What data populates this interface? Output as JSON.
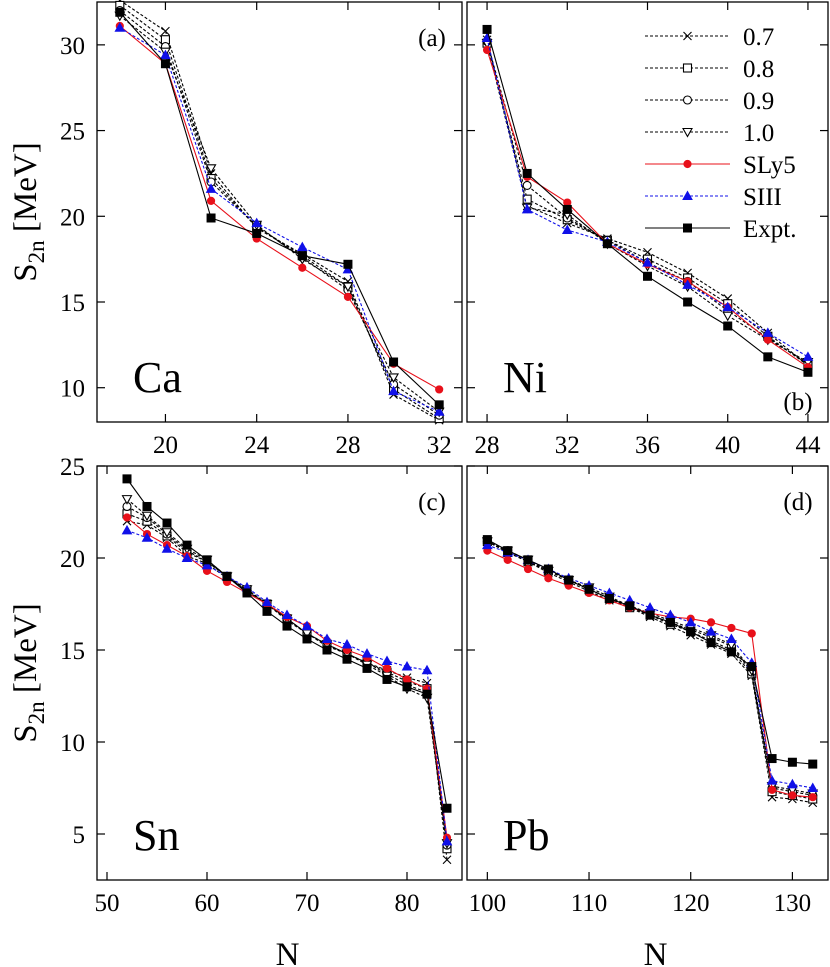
{
  "legend": [
    {
      "label": "0.7",
      "marker": "x",
      "color": "#000000",
      "dash": true
    },
    {
      "label": "0.8",
      "marker": "square-open",
      "color": "#000000",
      "dash": true
    },
    {
      "label": "0.9",
      "marker": "circle-open",
      "color": "#000000",
      "dash": true
    },
    {
      "label": "1.0",
      "marker": "triangle-down-open",
      "color": "#000000",
      "dash": true
    },
    {
      "label": "SLy5",
      "marker": "circle-filled",
      "color": "#e8101a",
      "dash": false
    },
    {
      "label": "SIII",
      "marker": "triangle-up-filled",
      "color": "#1010e8",
      "dash": true
    },
    {
      "label": "Expt.",
      "marker": "square-filled",
      "color": "#000000",
      "dash": false
    }
  ],
  "chart_data": [
    {
      "type": "line",
      "panel_label": "(a)",
      "element": "Ca",
      "xlabel": "",
      "ylabel": "S_2n [MeV]",
      "xlim": [
        17,
        33
      ],
      "ylim": [
        8,
        32.5
      ],
      "xticks": [
        20,
        24,
        28,
        32
      ],
      "yticks": [
        10,
        15,
        20,
        25,
        30
      ],
      "x": [
        18,
        20,
        22,
        24,
        26,
        28,
        30,
        32
      ],
      "series": [
        {
          "name": "0.7",
          "values": [
            32.6,
            30.8,
            22.5,
            19.3,
            17.8,
            16.2,
            9.6,
            8.1
          ]
        },
        {
          "name": "0.8",
          "values": [
            32.3,
            30.3,
            22.2,
            19.4,
            17.7,
            15.9,
            9.9,
            8.2
          ]
        },
        {
          "name": "0.9",
          "values": [
            32.0,
            29.9,
            22.0,
            19.4,
            17.6,
            15.7,
            10.2,
            8.4
          ]
        },
        {
          "name": "1.0",
          "values": [
            31.7,
            29.6,
            22.8,
            19.5,
            17.5,
            15.9,
            10.6,
            8.6
          ]
        },
        {
          "name": "SLy5",
          "values": [
            31.1,
            28.9,
            20.9,
            18.7,
            17.0,
            15.3,
            11.4,
            9.9
          ]
        },
        {
          "name": "SIII",
          "values": [
            31.0,
            29.4,
            21.6,
            19.6,
            18.2,
            16.9,
            9.8,
            8.6
          ]
        },
        {
          "name": "Expt.",
          "values": [
            31.9,
            28.9,
            19.9,
            19.0,
            17.7,
            17.2,
            11.5,
            9.0
          ]
        }
      ]
    },
    {
      "type": "line",
      "panel_label": "(b)",
      "element": "Ni",
      "xlabel": "",
      "ylabel": "",
      "xlim": [
        27,
        45
      ],
      "ylim": [
        8,
        32.5
      ],
      "xticks": [
        28,
        32,
        36,
        40,
        44
      ],
      "yticks": [
        10,
        15,
        20,
        25,
        30
      ],
      "x": [
        28,
        30,
        32,
        34,
        36,
        38,
        40,
        42,
        44
      ],
      "series": [
        {
          "name": "0.7",
          "values": [
            30.3,
            20.6,
            19.6,
            18.7,
            17.9,
            16.7,
            15.2,
            13.2,
            11.3
          ]
        },
        {
          "name": "0.8",
          "values": [
            30.1,
            21.0,
            19.8,
            18.6,
            17.5,
            16.4,
            14.9,
            13.0,
            11.3
          ]
        },
        {
          "name": "0.9",
          "values": [
            30.2,
            21.8,
            19.9,
            18.6,
            17.3,
            16.2,
            14.5,
            12.9,
            11.4
          ]
        },
        {
          "name": "1.0",
          "values": [
            30.1,
            20.5,
            20.1,
            18.4,
            17.1,
            15.9,
            14.2,
            12.8,
            11.5
          ]
        },
        {
          "name": "SLy5",
          "values": [
            29.7,
            22.3,
            20.8,
            18.4,
            17.2,
            16.2,
            14.7,
            12.8,
            11.2
          ]
        },
        {
          "name": "SIII",
          "values": [
            30.4,
            20.4,
            19.2,
            18.5,
            17.3,
            16.0,
            14.7,
            13.2,
            11.8
          ]
        },
        {
          "name": "Expt.",
          "values": [
            30.9,
            22.5,
            20.4,
            18.4,
            16.5,
            15.0,
            13.6,
            11.8,
            10.9
          ]
        }
      ]
    },
    {
      "type": "line",
      "panel_label": "(c)",
      "element": "Sn",
      "xlabel": "N",
      "ylabel": "S_2n [MeV]",
      "xlim": [
        49,
        85.5
      ],
      "ylim": [
        2.5,
        25
      ],
      "xticks": [
        50,
        60,
        70,
        80
      ],
      "yticks": [
        5,
        10,
        15,
        20,
        25
      ],
      "x": [
        52,
        54,
        56,
        58,
        60,
        62,
        64,
        66,
        68,
        70,
        72,
        74,
        76,
        78,
        80,
        82,
        84
      ],
      "series": [
        {
          "name": "0.7",
          "values": [
            22.0,
            21.8,
            21.1,
            20.1,
            19.7,
            18.9,
            18.3,
            17.5,
            16.6,
            15.9,
            15.2,
            14.8,
            14.3,
            13.9,
            13.5,
            13.2,
            3.6
          ]
        },
        {
          "name": "0.8",
          "values": [
            22.4,
            22.0,
            21.2,
            20.3,
            19.8,
            19.0,
            18.2,
            17.5,
            16.7,
            15.9,
            15.3,
            14.8,
            14.3,
            13.8,
            13.3,
            12.9,
            4.2
          ]
        },
        {
          "name": "0.9",
          "values": [
            22.8,
            22.2,
            21.3,
            20.4,
            19.8,
            19.0,
            18.2,
            17.5,
            16.7,
            15.9,
            15.3,
            14.8,
            14.3,
            13.7,
            13.1,
            12.7,
            4.4
          ]
        },
        {
          "name": "1.0",
          "values": [
            23.2,
            22.3,
            21.4,
            20.5,
            19.9,
            19.0,
            18.3,
            17.5,
            16.7,
            15.9,
            15.3,
            14.8,
            14.2,
            13.6,
            12.9,
            12.4,
            4.5
          ]
        },
        {
          "name": "SLy5",
          "values": [
            22.2,
            21.3,
            20.7,
            20.1,
            19.3,
            18.7,
            18.1,
            17.5,
            16.8,
            16.3,
            15.5,
            15.0,
            14.6,
            14.0,
            13.4,
            12.9,
            4.8
          ]
        },
        {
          "name": "SIII",
          "values": [
            21.5,
            21.1,
            20.5,
            20.0,
            19.6,
            19.0,
            18.4,
            17.6,
            16.9,
            16.3,
            15.6,
            15.3,
            14.8,
            14.4,
            14.1,
            13.9,
            4.6
          ]
        },
        {
          "name": "Expt.",
          "values": [
            24.3,
            22.8,
            21.9,
            20.7,
            19.9,
            19.0,
            18.1,
            17.1,
            16.3,
            15.6,
            15.0,
            14.5,
            14.0,
            13.4,
            13.0,
            12.6,
            6.4
          ]
        }
      ]
    },
    {
      "type": "line",
      "panel_label": "(d)",
      "element": "Pb",
      "xlabel": "N",
      "ylabel": "",
      "xlim": [
        98,
        133.5
      ],
      "ylim": [
        2.5,
        25
      ],
      "xticks": [
        100,
        110,
        120,
        130
      ],
      "yticks": [
        5,
        10,
        15,
        20,
        25
      ],
      "x": [
        100,
        102,
        104,
        106,
        108,
        110,
        112,
        114,
        116,
        118,
        120,
        122,
        124,
        126,
        128,
        130,
        132
      ],
      "series": [
        {
          "name": "0.7",
          "values": [
            20.9,
            20.3,
            19.8,
            19.2,
            18.7,
            18.2,
            17.7,
            17.3,
            16.8,
            16.3,
            15.8,
            15.3,
            14.8,
            13.6,
            7.0,
            6.9,
            6.7
          ]
        },
        {
          "name": "0.8",
          "values": [
            20.9,
            20.3,
            19.8,
            19.3,
            18.8,
            18.3,
            17.8,
            17.3,
            16.9,
            16.4,
            16.0,
            15.5,
            15.0,
            13.7,
            7.3,
            7.1,
            6.9
          ]
        },
        {
          "name": "0.9",
          "values": [
            20.9,
            20.4,
            19.8,
            19.3,
            18.8,
            18.3,
            17.8,
            17.4,
            16.9,
            16.5,
            16.1,
            15.7,
            15.2,
            13.8,
            7.5,
            7.3,
            7.1
          ]
        },
        {
          "name": "1.0",
          "values": [
            20.9,
            20.4,
            19.9,
            19.3,
            18.8,
            18.4,
            17.9,
            17.4,
            17.0,
            16.6,
            16.2,
            15.8,
            15.3,
            13.9,
            7.6,
            7.4,
            7.2
          ]
        },
        {
          "name": "SLy5",
          "values": [
            20.4,
            19.9,
            19.4,
            18.9,
            18.5,
            18.1,
            17.7,
            17.3,
            17.0,
            16.8,
            16.7,
            16.5,
            16.2,
            15.9,
            7.4,
            7.1,
            7.0
          ]
        },
        {
          "name": "SIII",
          "values": [
            20.7,
            20.3,
            19.9,
            19.4,
            18.9,
            18.5,
            18.1,
            17.7,
            17.3,
            16.9,
            16.5,
            16.0,
            15.6,
            14.3,
            7.9,
            7.7,
            7.5
          ]
        },
        {
          "name": "Expt.",
          "values": [
            21.0,
            20.4,
            19.9,
            19.4,
            18.8,
            18.3,
            17.8,
            17.4,
            16.9,
            16.5,
            16.0,
            15.4,
            14.9,
            14.1,
            9.1,
            8.9,
            8.8
          ]
        }
      ]
    }
  ]
}
